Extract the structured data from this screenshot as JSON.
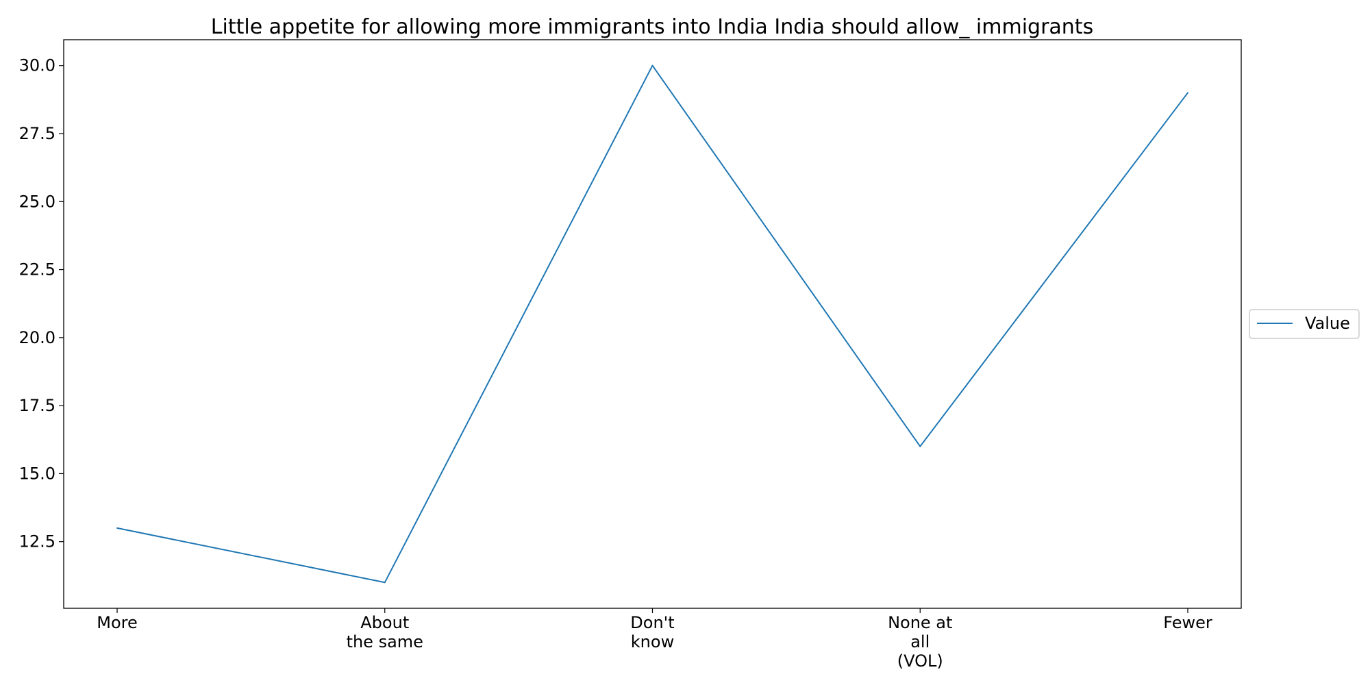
{
  "chart_data": {
    "type": "line",
    "title": "Little appetite for allowing more immigrants into India India should allow_ immigrants",
    "xlabel": "",
    "ylabel": "",
    "categories": [
      "More",
      "About\nthe same",
      "Don't\nknow",
      "None at\nall\n(VOL)",
      "Fewer"
    ],
    "series": [
      {
        "name": "Value",
        "values": [
          13,
          11,
          30,
          16,
          29
        ],
        "color": "#1f77b4"
      }
    ],
    "ylim": [
      10.05,
      30.95
    ],
    "yticks": [
      "12.5",
      "15.0",
      "17.5",
      "20.0",
      "22.5",
      "25.0",
      "27.5",
      "30.0"
    ],
    "grid": false,
    "legend_position": "right, outside plot"
  }
}
